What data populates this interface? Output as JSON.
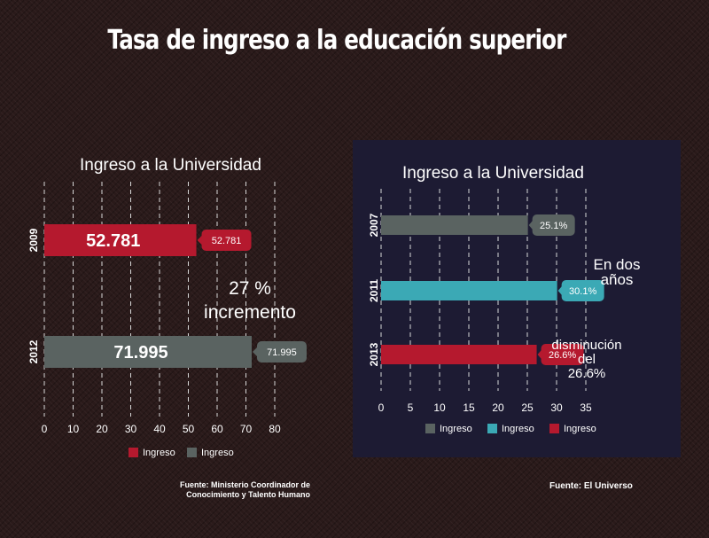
{
  "title": "Tasa de ingreso a la educación superior",
  "chart_data": [
    {
      "type": "bar",
      "orientation": "horizontal",
      "title": "Ingreso a la Universidad",
      "categories": [
        "2009",
        "2012"
      ],
      "values": [
        52.781,
        71.995
      ],
      "value_labels": [
        "52.781",
        "71.995"
      ],
      "bar_labels": [
        "52.781",
        "71.995"
      ],
      "bar_colors": [
        "#b5192e",
        "#5a6361"
      ],
      "xlim": [
        0,
        80
      ],
      "xticks": [
        "0",
        "10",
        "20",
        "30",
        "40",
        "50",
        "60",
        "70",
        "80"
      ],
      "grid": true,
      "legend": {
        "placement": "bottom",
        "entries": [
          {
            "label": "Ingreso",
            "color": "#b5192e"
          },
          {
            "label": "Ingreso",
            "color": "#5a6361"
          }
        ]
      },
      "annotation": [
        "27 %",
        "incremento"
      ],
      "source": [
        "Fuente: Ministerio Coordinador de",
        "Conocimiento y Talento Humano"
      ]
    },
    {
      "type": "bar",
      "orientation": "horizontal",
      "title": "Ingreso a la Universidad",
      "categories": [
        "2007",
        "2011",
        "2013"
      ],
      "values": [
        25.1,
        30.1,
        26.6
      ],
      "value_labels": [
        "25.1%",
        "30.1%",
        "26.6%"
      ],
      "bar_colors": [
        "#5a6361",
        "#3ba9b5",
        "#b5192e"
      ],
      "xlim": [
        0,
        35
      ],
      "xticks": [
        "0",
        "5",
        "10",
        "15",
        "20",
        "25",
        "30",
        "35"
      ],
      "grid": true,
      "legend": {
        "placement": "bottom",
        "entries": [
          {
            "label": "Ingreso",
            "color": "#5a6361"
          },
          {
            "label": "Ingreso",
            "color": "#3ba9b5"
          },
          {
            "label": "Ingreso",
            "color": "#b5192e"
          }
        ]
      },
      "annotations": [
        {
          "lines": [
            "En dos",
            "años"
          ]
        },
        {
          "lines": [
            "disminución",
            "del",
            "26.6%"
          ]
        }
      ],
      "source": [
        "Fuente: El Universo"
      ]
    }
  ]
}
